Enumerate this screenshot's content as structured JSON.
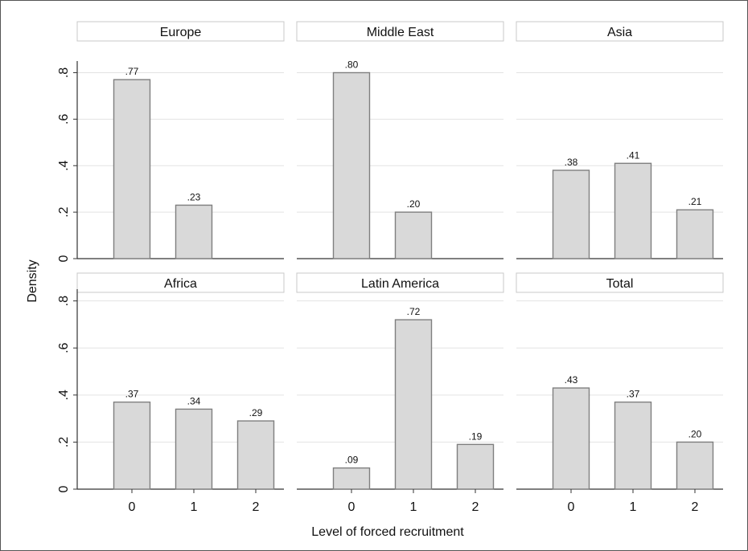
{
  "chart_data": {
    "type": "bar",
    "ylabel": "Density",
    "xlabel": "Level of forced recruitment",
    "categories": [
      "0",
      "1",
      "2"
    ],
    "yticks": [
      0,
      0.2,
      0.4,
      0.6,
      0.8
    ],
    "ytick_labels": [
      "0",
      ".2",
      ".4",
      ".6",
      ".8"
    ],
    "ylim": [
      0,
      0.85
    ],
    "grid": true,
    "bar_color": "#d9d9d9",
    "bar_stroke": "#7f7f7f",
    "panels": [
      {
        "name": "Europe",
        "values": [
          0.77,
          0.23,
          null
        ],
        "labels": [
          ".77",
          ".23",
          ""
        ]
      },
      {
        "name": "Middle East",
        "values": [
          0.8,
          0.2,
          null
        ],
        "labels": [
          ".80",
          ".20",
          ""
        ]
      },
      {
        "name": "Asia",
        "values": [
          0.38,
          0.41,
          0.21
        ],
        "labels": [
          ".38",
          ".41",
          ".21"
        ]
      },
      {
        "name": "Africa",
        "values": [
          0.37,
          0.34,
          0.29
        ],
        "labels": [
          ".37",
          ".34",
          ".29"
        ]
      },
      {
        "name": "Latin America",
        "values": [
          0.09,
          0.72,
          0.19
        ],
        "labels": [
          ".09",
          ".72",
          ".19"
        ]
      },
      {
        "name": "Total",
        "values": [
          0.43,
          0.37,
          0.2
        ],
        "labels": [
          ".43",
          ".37",
          ".20"
        ]
      }
    ]
  }
}
